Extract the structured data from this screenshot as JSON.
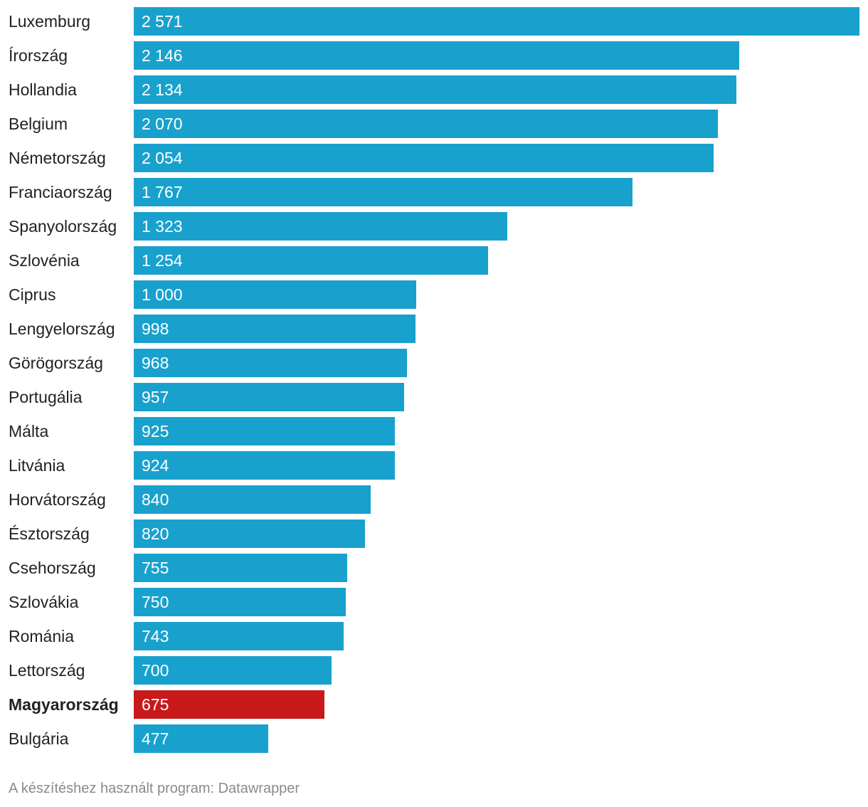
{
  "chart_data": {
    "type": "bar",
    "orientation": "horizontal",
    "categories": [
      "Luxemburg",
      "Írország",
      "Hollandia",
      "Belgium",
      "Németország",
      "Franciaország",
      "Spanyolország",
      "Szlovénia",
      "Ciprus",
      "Lengyelország",
      "Görögország",
      "Portugália",
      "Málta",
      "Litvánia",
      "Horvátország",
      "Észtország",
      "Csehország",
      "Szlovákia",
      "Románia",
      "Lettország",
      "Magyarország",
      "Bulgária"
    ],
    "values": [
      2571,
      2146,
      2134,
      2070,
      2054,
      1767,
      1323,
      1254,
      1000,
      998,
      968,
      957,
      925,
      924,
      840,
      820,
      755,
      750,
      743,
      700,
      675,
      477
    ],
    "value_labels": [
      "2 571",
      "2 146",
      "2 134",
      "2 070",
      "2 054",
      "1 767",
      "1 323",
      "1 254",
      "1 000",
      "998",
      "968",
      "957",
      "925",
      "924",
      "840",
      "820",
      "755",
      "750",
      "743",
      "700",
      "675",
      "477"
    ],
    "highlight": "Magyarország",
    "colors": {
      "default": "#19a1cd",
      "highlight": "#c8191b"
    },
    "xlim": [
      0,
      2571
    ],
    "grid": false,
    "legend": "none"
  },
  "footer": {
    "credit": "A készítéshez használt program: Datawrapper"
  }
}
